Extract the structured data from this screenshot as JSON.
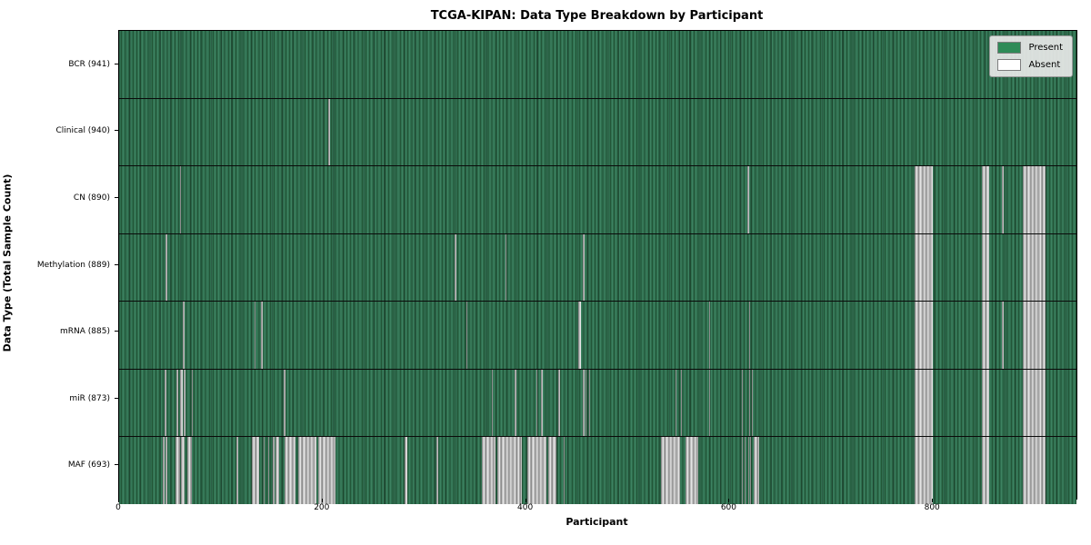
{
  "title": "TCGA-KIPAN: Data Type Breakdown by Participant",
  "xlabel": "Participant",
  "ylabel": "Data Type (Total Sample Count)",
  "legend": {
    "present_label": "Present",
    "absent_label": "Absent"
  },
  "colors": {
    "present_legend": "#2e8b57",
    "absent_legend": "#ffffff",
    "present_fill": "#2e6b4b",
    "absent_fill": "#c2c2c2",
    "axis": "#000000"
  },
  "chart_data": {
    "type": "heatmap",
    "title": "TCGA-KIPAN: Data Type Breakdown by Participant",
    "xlabel": "Participant",
    "ylabel": "Data Type (Total Sample Count)",
    "legend_entries": [
      "Present",
      "Absent"
    ],
    "legend_position": "upper right",
    "grid": false,
    "x_range": [
      0,
      941
    ],
    "x_ticks": [
      0,
      200,
      400,
      600,
      800
    ],
    "rows": [
      {
        "name": "BCR",
        "label": "BCR (941)",
        "total": 941,
        "absent_segments": []
      },
      {
        "name": "Clinical",
        "label": "Clinical (940)",
        "total": 940,
        "absent_segments": [
          [
            205.5,
            1.5
          ]
        ]
      },
      {
        "name": "CN",
        "label": "CN (890)",
        "total": 890,
        "absent_segments": [
          [
            59.5,
            1.5
          ],
          [
            617.5,
            1.5
          ],
          [
            782,
            17.5
          ],
          [
            848.5,
            6.5
          ],
          [
            868,
            1.2
          ],
          [
            888,
            23
          ]
        ]
      },
      {
        "name": "Methylation",
        "label": "Methylation (889)",
        "total": 889,
        "absent_segments": [
          [
            46,
            1.5
          ],
          [
            330,
            1.5
          ],
          [
            379.5,
            1.5
          ],
          [
            456,
            1.5
          ],
          [
            782,
            17.5
          ],
          [
            848.5,
            6.5
          ],
          [
            888,
            23
          ]
        ]
      },
      {
        "name": "mRNA",
        "label": "mRNA (885)",
        "total": 885,
        "absent_segments": [
          [
            63,
            1.3
          ],
          [
            133,
            1.3
          ],
          [
            139.5,
            1.3
          ],
          [
            341,
            1.3
          ],
          [
            451.5,
            2.2
          ],
          [
            580,
            1.3
          ],
          [
            619,
            1.3
          ],
          [
            782,
            17.5
          ],
          [
            848.5,
            6.5
          ],
          [
            868,
            1.2
          ],
          [
            888,
            23
          ]
        ]
      },
      {
        "name": "miR",
        "label": "miR (873)",
        "total": 873,
        "absent_segments": [
          [
            45,
            1.3
          ],
          [
            56.5,
            2
          ],
          [
            60,
            2.5
          ],
          [
            63.5,
            1.5
          ],
          [
            71.5,
            1.3
          ],
          [
            162,
            1.3
          ],
          [
            366,
            1.3
          ],
          [
            389,
            1.5
          ],
          [
            410,
            1.5
          ],
          [
            415,
            1.3
          ],
          [
            432,
            1.5
          ],
          [
            456,
            1.2
          ],
          [
            458.5,
            1.2
          ],
          [
            462,
            1.2
          ],
          [
            546.5,
            1.3
          ],
          [
            552,
            1.3
          ],
          [
            580,
            1.3
          ],
          [
            612,
            1
          ],
          [
            619,
            1.3
          ],
          [
            622,
            1
          ],
          [
            782,
            17.5
          ],
          [
            848.5,
            6.5
          ],
          [
            888,
            23
          ]
        ]
      },
      {
        "name": "MAF",
        "label": "MAF (693)",
        "total": 693,
        "absent_segments": [
          [
            43,
            1.3
          ],
          [
            46,
            1.3
          ],
          [
            55.5,
            4.5
          ],
          [
            60.5,
            4
          ],
          [
            67,
            4.5
          ],
          [
            115.5,
            2
          ],
          [
            130.5,
            7
          ],
          [
            142,
            1.3
          ],
          [
            146.5,
            1.3
          ],
          [
            151,
            1.5
          ],
          [
            154,
            3
          ],
          [
            162.5,
            11
          ],
          [
            176,
            18
          ],
          [
            196,
            16.5
          ],
          [
            280.5,
            3
          ],
          [
            312,
            2
          ],
          [
            356.5,
            13.5
          ],
          [
            371.5,
            24
          ],
          [
            401,
            19
          ],
          [
            421.5,
            8
          ],
          [
            437,
            1.3
          ],
          [
            533,
            18
          ],
          [
            556.5,
            12.5
          ],
          [
            612,
            1
          ],
          [
            614.5,
            1
          ],
          [
            618,
            1.3
          ],
          [
            620.5,
            1
          ],
          [
            623.5,
            6
          ],
          [
            782,
            17.5
          ],
          [
            848.5,
            6.5
          ],
          [
            888,
            23
          ]
        ]
      }
    ]
  }
}
